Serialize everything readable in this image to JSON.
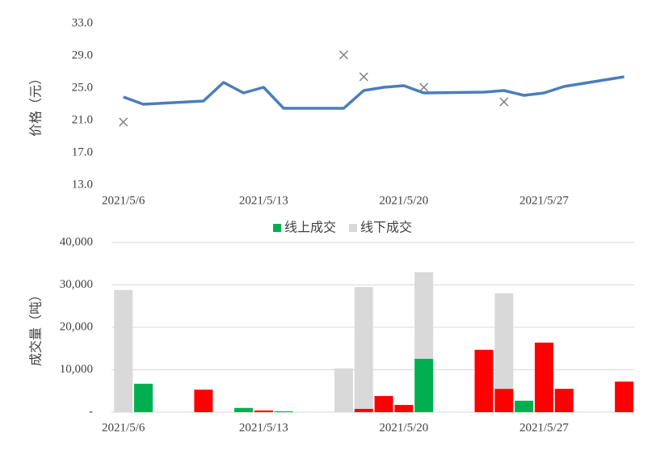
{
  "chart_data": [
    {
      "type": "line",
      "ylabel": "价格（元）",
      "xlim": [
        4.6,
        31.5
      ],
      "xticks": [
        {
          "value": 6,
          "label": "2021/5/6"
        },
        {
          "value": 13,
          "label": "2021/5/13"
        },
        {
          "value": 20,
          "label": "2021/5/20"
        },
        {
          "value": 27,
          "label": "2021/5/27"
        }
      ],
      "ylim": [
        13,
        33
      ],
      "yticks": [
        {
          "value": 13,
          "label": "13.0"
        },
        {
          "value": 17,
          "label": "17.0"
        },
        {
          "value": 21,
          "label": "21.0"
        },
        {
          "value": 25,
          "label": "25.0"
        },
        {
          "value": 29,
          "label": "29.0"
        },
        {
          "value": 33,
          "label": "33.0"
        }
      ],
      "grid": false,
      "series": [
        {
          "style": "line",
          "color": "#4a7ebb",
          "x": [
            6,
            7,
            10,
            11,
            12,
            13,
            14,
            17,
            18,
            19,
            20,
            21,
            24,
            25,
            26,
            27,
            28,
            31
          ],
          "values": [
            23.9,
            23.0,
            23.4,
            25.7,
            24.4,
            25.1,
            22.5,
            22.5,
            24.7,
            25.1,
            25.3,
            24.4,
            24.5,
            24.7,
            24.1,
            24.4,
            25.2,
            26.4
          ]
        },
        {
          "style": "marker",
          "color": "#7f7f7f",
          "x": [
            6,
            17,
            18,
            21,
            25
          ],
          "values": [
            20.8,
            29.1,
            26.4,
            25.1,
            23.3
          ]
        }
      ]
    },
    {
      "type": "bar",
      "stacked": true,
      "ylabel": "成交量（吨）",
      "legend": "top",
      "xlim": [
        4.6,
        31.5
      ],
      "xticks": [
        {
          "value": 6,
          "label": "2021/5/6"
        },
        {
          "value": 13,
          "label": "2021/5/13"
        },
        {
          "value": 20,
          "label": "2021/5/20"
        },
        {
          "value": 27,
          "label": "2021/5/27"
        }
      ],
      "ylim": [
        0,
        40000
      ],
      "yticks": [
        {
          "value": 0,
          "label": "-"
        },
        {
          "value": 10000,
          "label": "10,000"
        },
        {
          "value": 20000,
          "label": "20,000"
        },
        {
          "value": 30000,
          "label": "30,000"
        },
        {
          "value": 40000,
          "label": "40,000"
        }
      ],
      "grid": true,
      "x": [
        6,
        7,
        10,
        11,
        12,
        13,
        14,
        17,
        18,
        19,
        20,
        21,
        24,
        25,
        26,
        27,
        28,
        31
      ],
      "series": [
        {
          "name": "线上成交",
          "color": "#00b050",
          "colors": [
            "#00b050",
            "#00b050",
            "#ff0000",
            "#00b050",
            "#00b050",
            "#ff0000",
            "#00b050",
            "#00b050",
            "#ff0000",
            "#ff0000",
            "#ff0000",
            "#00b050",
            "#ff0000",
            "#ff0000",
            "#00b050",
            "#ff0000",
            "#ff0000",
            "#ff0000"
          ],
          "values": [
            0,
            6700,
            5300,
            0,
            1000,
            400,
            200,
            0,
            800,
            3800,
            1700,
            12600,
            14700,
            5500,
            2700,
            16400,
            5500,
            7200
          ]
        },
        {
          "name": "线下成交",
          "color": "#d9d9d9",
          "values": [
            28800,
            0,
            0,
            0,
            0,
            0,
            0,
            10300,
            28700,
            0,
            0,
            20400,
            0,
            22500,
            0,
            0,
            0,
            0
          ]
        }
      ]
    }
  ]
}
